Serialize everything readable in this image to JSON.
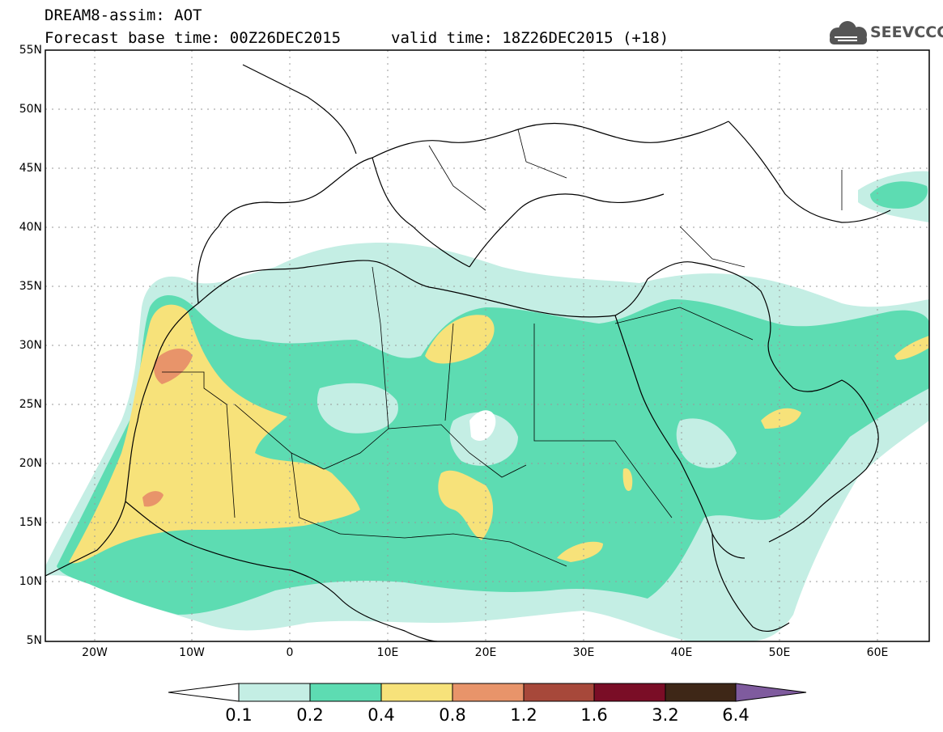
{
  "header": {
    "title_line1": "DREAM8-assim: AOT",
    "title_line2": "Forecast base time: 00Z26DEC2015",
    "valid_time": "valid time: 18Z26DEC2015 (+18)",
    "logo_text": "SEEVCCC"
  },
  "axes": {
    "lat_labels": [
      "55N",
      "50N",
      "45N",
      "40N",
      "35N",
      "30N",
      "25N",
      "20N",
      "15N",
      "10N",
      "5N"
    ],
    "lon_labels": [
      "20W",
      "10W",
      "0",
      "10E",
      "20E",
      "30E",
      "40E",
      "50E",
      "60E"
    ]
  },
  "legend": {
    "labels": [
      "0.1",
      "0.2",
      "0.4",
      "0.8",
      "1.2",
      "1.6",
      "3.2",
      "6.4"
    ],
    "colors": [
      "#ffffff",
      "#c4eee4",
      "#5ddcb2",
      "#f7e27a",
      "#e8946a",
      "#a7483a",
      "#7a0d26",
      "#3e2717",
      "#7f5b9e"
    ]
  },
  "colors": {
    "frame": "#000000",
    "land_border": "#000000",
    "grid": "#999999"
  }
}
